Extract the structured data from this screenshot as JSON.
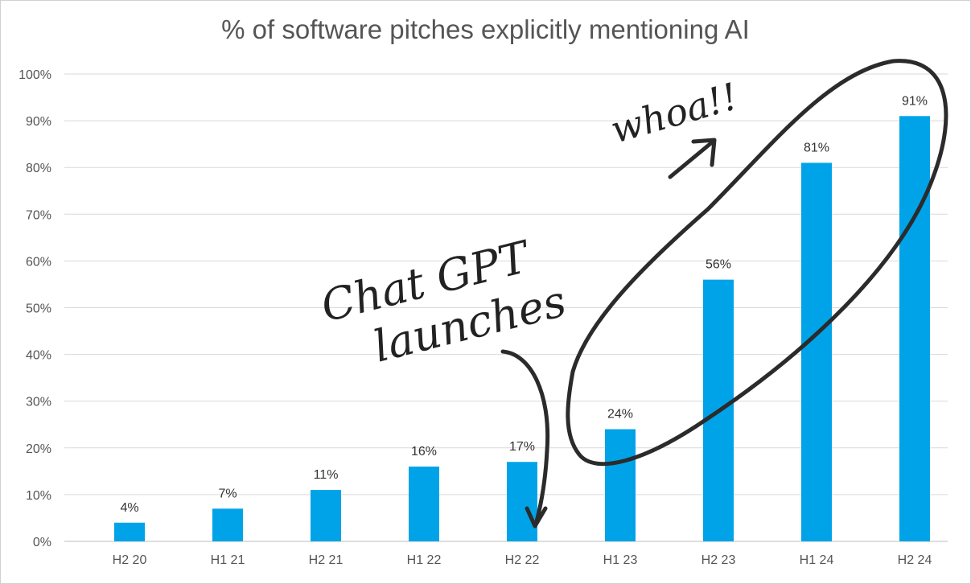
{
  "chart_data": {
    "type": "bar",
    "title": "% of software pitches explicitly mentioning AI",
    "categories": [
      "H2 20",
      "H1 21",
      "H2 21",
      "H1 22",
      "H2 22",
      "H1 23",
      "H2 23",
      "H1 24",
      "H2 24"
    ],
    "values": [
      4,
      7,
      11,
      16,
      17,
      24,
      56,
      81,
      91
    ],
    "value_labels": [
      "4%",
      "7%",
      "11%",
      "16%",
      "17%",
      "24%",
      "56%",
      "81%",
      "91%"
    ],
    "ylim": [
      0,
      100
    ],
    "yticks": [
      "0%",
      "10%",
      "20%",
      "30%",
      "40%",
      "50%",
      "60%",
      "70%",
      "80%",
      "90%",
      "100%"
    ],
    "grid": true,
    "bar_color": "#00a3e8",
    "annotations": {
      "chatgpt_line1": "Chat GPT",
      "chatgpt_line2": "launches",
      "whoa": "whoa!!"
    }
  }
}
